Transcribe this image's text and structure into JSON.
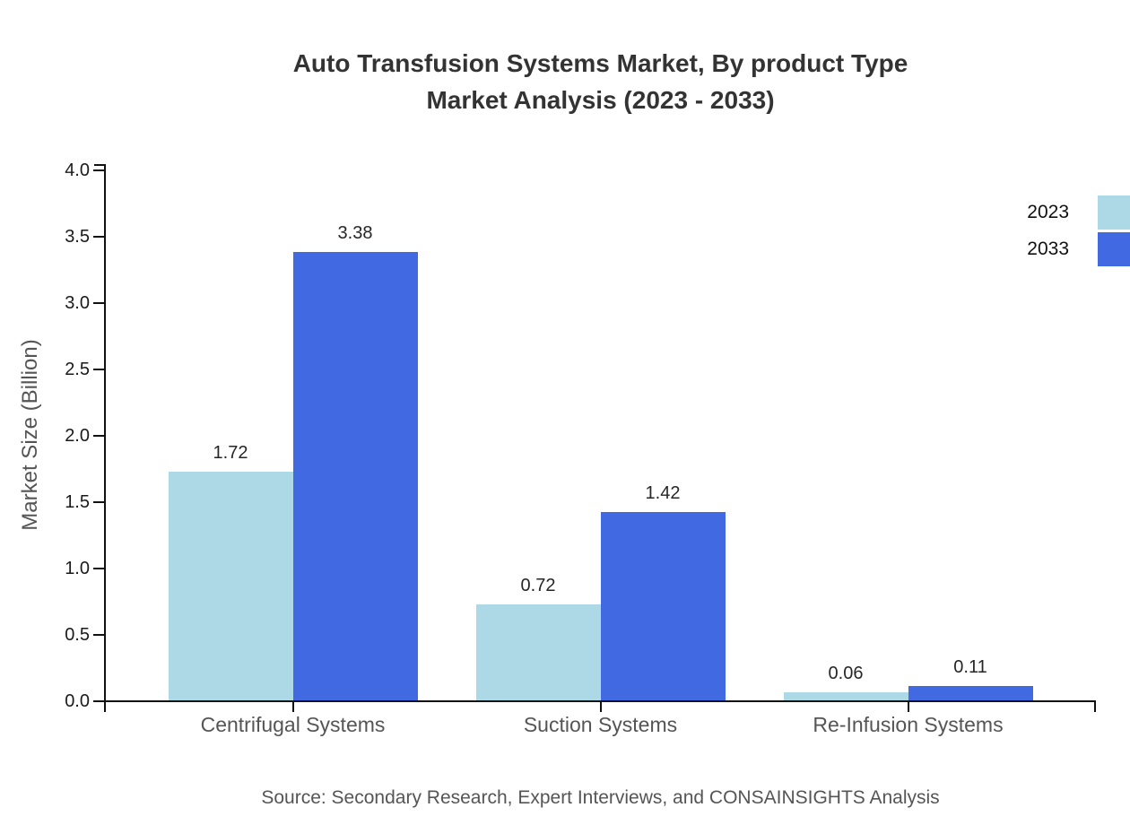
{
  "chart_data": {
    "type": "bar",
    "title_line1": "Auto Transfusion Systems Market, By product Type",
    "title_line2": "Market Analysis (2023 - 2033)",
    "ylabel": "Market Size (Billion)",
    "xlabel": "",
    "categories": [
      "Centrifugal Systems",
      "Suction Systems",
      "Re-Infusion Systems"
    ],
    "series": [
      {
        "name": "2023",
        "color": "#ADD8E6",
        "values": [
          1.72,
          0.72,
          0.06
        ],
        "labels": [
          "1.72",
          "0.72",
          "0.06"
        ]
      },
      {
        "name": "2033",
        "color": "#4169E1",
        "values": [
          3.38,
          1.42,
          0.11
        ],
        "labels": [
          "3.38",
          "1.42",
          "0.11"
        ]
      }
    ],
    "ylim": [
      0,
      4
    ],
    "ytick_step": 0.5,
    "ytick_labels": [
      "0.0",
      "0.5",
      "1.0",
      "1.5",
      "2.0",
      "2.5",
      "3.0",
      "3.5",
      "4.0"
    ],
    "grid": false,
    "legend_position": "top-right",
    "source": "Source: Secondary Research, Expert Interviews, and CONSAINSIGHTS Analysis"
  }
}
